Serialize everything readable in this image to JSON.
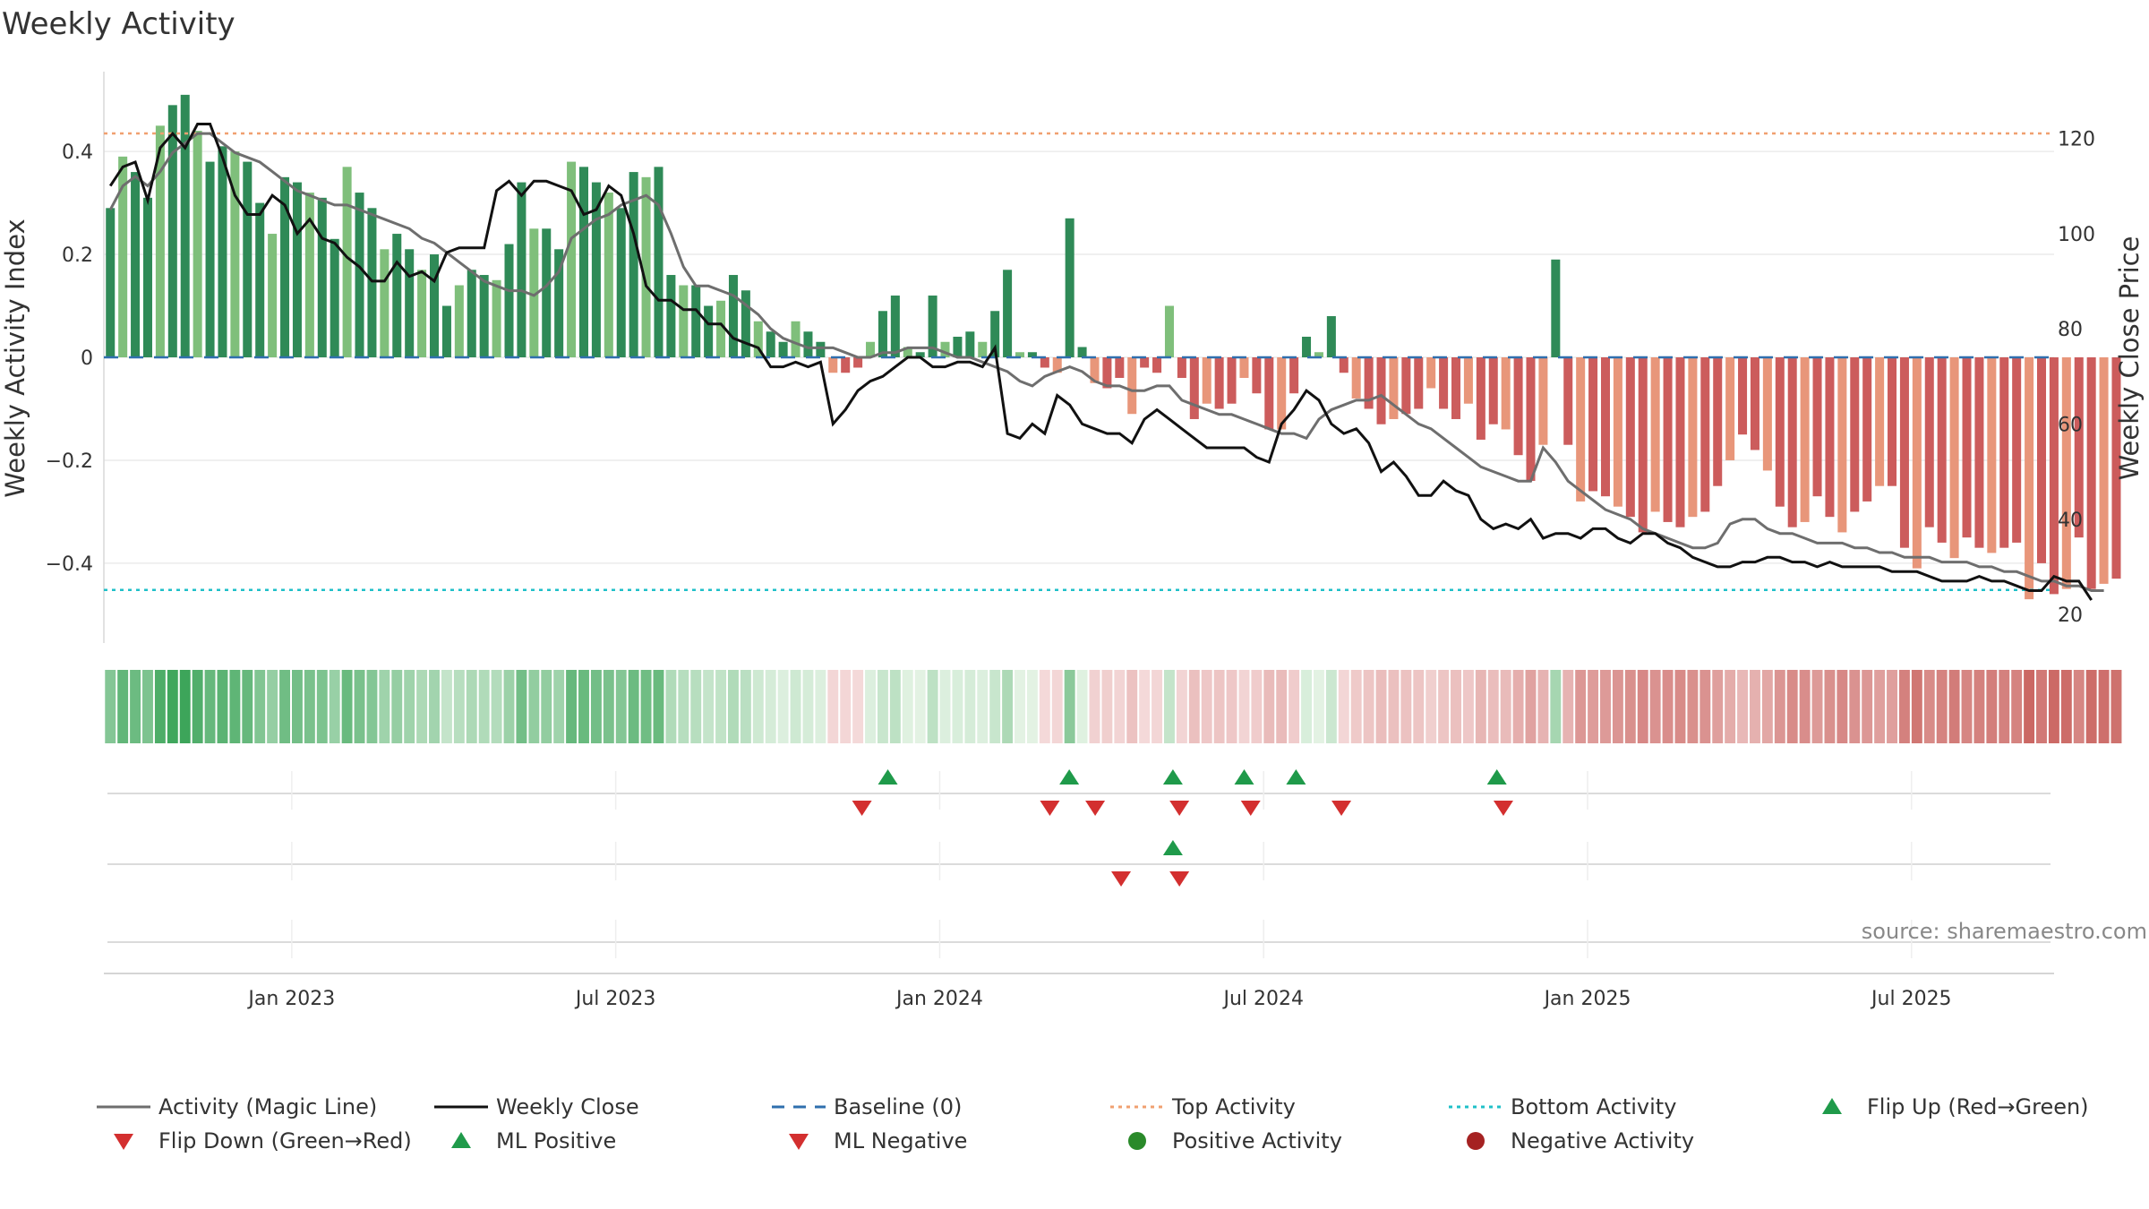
{
  "chart_data": {
    "type": "bar",
    "title": "Weekly Activity",
    "ylabel_left": "Weekly Activity Index",
    "ylabel_right": "Weekly Close Price",
    "ylim_left": [
      -0.555,
      0.555
    ],
    "ylim_right": [
      14,
      134
    ],
    "yticks_left": [
      {
        "v": 0.4,
        "label": "0.4"
      },
      {
        "v": 0.2,
        "label": "0.2"
      },
      {
        "v": 0,
        "label": "0"
      },
      {
        "v": -0.2,
        "label": "−0.2"
      },
      {
        "v": -0.4,
        "label": "−0.4"
      }
    ],
    "yticks_right": [
      {
        "v": 120,
        "label": "120"
      },
      {
        "v": 100,
        "label": "100"
      },
      {
        "v": 80,
        "label": "80"
      },
      {
        "v": 60,
        "label": "60"
      },
      {
        "v": 40,
        "label": "40"
      },
      {
        "v": 20,
        "label": "20"
      }
    ],
    "x_range": [
      2022.71,
      2025.72
    ],
    "xticks": [
      {
        "v": 2023.0,
        "label": "Jan 2023"
      },
      {
        "v": 2023.5,
        "label": "Jul 2023"
      },
      {
        "v": 2024.0,
        "label": "Jan 2024"
      },
      {
        "v": 2024.5,
        "label": "Jul 2024"
      },
      {
        "v": 2025.0,
        "label": "Jan 2025"
      },
      {
        "v": 2025.5,
        "label": "Jul 2025"
      }
    ],
    "top_activity": 0.435,
    "bottom_activity": -0.452,
    "baseline": 0,
    "source": "source: sharemaestro.com",
    "weeks": {
      "start": 2022.72,
      "step": 0.01923,
      "activity": [
        0.29,
        0.39,
        0.36,
        0.31,
        0.45,
        0.49,
        0.51,
        0.44,
        0.38,
        0.41,
        0.4,
        0.38,
        0.3,
        0.24,
        0.35,
        0.34,
        0.32,
        0.31,
        0.23,
        0.37,
        0.32,
        0.29,
        0.21,
        0.24,
        0.21,
        0.17,
        0.2,
        0.1,
        0.14,
        0.17,
        0.16,
        0.15,
        0.22,
        0.34,
        0.25,
        0.25,
        0.21,
        0.38,
        0.37,
        0.34,
        0.32,
        0.29,
        0.36,
        0.35,
        0.37,
        0.16,
        0.14,
        0.14,
        0.1,
        0.11,
        0.16,
        0.13,
        0.07,
        0.05,
        0.03,
        0.07,
        0.05,
        0.03,
        -0.03,
        -0.03,
        -0.02,
        0.03,
        0.09,
        0.12,
        0.02,
        0.01,
        0.12,
        0.03,
        0.04,
        0.05,
        0.03,
        0.09,
        0.17,
        0.01,
        0.01,
        -0.02,
        -0.03,
        0.27,
        0.02,
        -0.05,
        -0.06,
        -0.04,
        -0.11,
        -0.02,
        -0.03,
        0.1,
        -0.04,
        -0.12,
        -0.09,
        -0.1,
        -0.09,
        -0.04,
        -0.07,
        -0.14,
        -0.14,
        -0.07,
        0.04,
        0.01,
        0.08,
        -0.03,
        -0.08,
        -0.1,
        -0.13,
        -0.12,
        -0.11,
        -0.1,
        -0.06,
        -0.1,
        -0.12,
        -0.09,
        -0.16,
        -0.13,
        -0.14,
        -0.19,
        -0.24,
        -0.17,
        0.19,
        -0.17,
        -0.28,
        -0.26,
        -0.27,
        -0.29,
        -0.31,
        -0.34,
        -0.3,
        -0.32,
        -0.33,
        -0.31,
        -0.3,
        -0.25,
        -0.2,
        -0.15,
        -0.18,
        -0.22,
        -0.29,
        -0.33,
        -0.32,
        -0.27,
        -0.31,
        -0.34,
        -0.3,
        -0.28,
        -0.25,
        -0.25,
        -0.37,
        -0.41,
        -0.33,
        -0.36,
        -0.39,
        -0.35,
        -0.37,
        -0.38,
        -0.37,
        -0.36,
        -0.47,
        -0.4,
        -0.46,
        -0.45,
        -0.35,
        -0.45,
        -0.44,
        -0.43
      ],
      "close": [
        110,
        114,
        115,
        107,
        118,
        121,
        118,
        123,
        123,
        116,
        108,
        104,
        104,
        108,
        106,
        100,
        103,
        99,
        98,
        95,
        93,
        90,
        90,
        94,
        91,
        92,
        90,
        96,
        97,
        97,
        97,
        109,
        111,
        108,
        111,
        111,
        110,
        109,
        104,
        105,
        110,
        108,
        100,
        89,
        86,
        86,
        84,
        84,
        81,
        81,
        78,
        77,
        76,
        72,
        72,
        73,
        72,
        73,
        60,
        63,
        67,
        69,
        70,
        72,
        74,
        74,
        72,
        72,
        73,
        73,
        72,
        76,
        58,
        57,
        60,
        58,
        66,
        64,
        60,
        59,
        58,
        58,
        56,
        61,
        63,
        61,
        59,
        57,
        55,
        55,
        55,
        55,
        53,
        52,
        60,
        63,
        67,
        65,
        60,
        58,
        59,
        56,
        50,
        52,
        49,
        45,
        45,
        48,
        46,
        45,
        40,
        38,
        39,
        38,
        40,
        36,
        37,
        37,
        36,
        38,
        38,
        36,
        35,
        37,
        37,
        35,
        34,
        32,
        31,
        30,
        30,
        31,
        31,
        32,
        32,
        31,
        31,
        30,
        31,
        30,
        30,
        30,
        30,
        29,
        29,
        29,
        28,
        27,
        27,
        27,
        28,
        27,
        27,
        26,
        25,
        25,
        28,
        27,
        27,
        23
      ],
      "magic": [
        105,
        110,
        112,
        110,
        113,
        117,
        119,
        121,
        121,
        119,
        117,
        116,
        115,
        113,
        111,
        109,
        108,
        107,
        106,
        106,
        105,
        104,
        103,
        102,
        101,
        99,
        98,
        96,
        94,
        92,
        90,
        89,
        88,
        88,
        87,
        89,
        92,
        99,
        101,
        103,
        104,
        106,
        107,
        108,
        106,
        100,
        93,
        89,
        89,
        88,
        87,
        85,
        83,
        80,
        78,
        77,
        76,
        76,
        76,
        75,
        74,
        74,
        75,
        75,
        76,
        76,
        76,
        75,
        74,
        74,
        73,
        72,
        71,
        69,
        68,
        70,
        71,
        72,
        71,
        69,
        68,
        68,
        67,
        67,
        68,
        68,
        65,
        64,
        63,
        62,
        62,
        61,
        60,
        59,
        58,
        58,
        57,
        61,
        63,
        64,
        65,
        65,
        66,
        64,
        62,
        60,
        59,
        57,
        55,
        53,
        51,
        50,
        49,
        48,
        48,
        55,
        52,
        48,
        46,
        44,
        42,
        41,
        40,
        38,
        37,
        36,
        35,
        34,
        34,
        35,
        39,
        40,
        40,
        38,
        37,
        37,
        36,
        35,
        35,
        35,
        34,
        34,
        33,
        33,
        32,
        32,
        32,
        31,
        31,
        31,
        30,
        30,
        29,
        29,
        28,
        27,
        27,
        26,
        26,
        25,
        25
      ]
    },
    "flip_up": [
      2023.92,
      2024.2,
      2024.36,
      2024.47,
      2024.55,
      2024.86
    ],
    "flip_down": [
      2023.88,
      2024.17,
      2024.24,
      2024.37,
      2024.48,
      2024.62,
      2024.87
    ],
    "ml_positive": [
      2024.36
    ],
    "ml_negative": [
      2024.28,
      2024.37
    ],
    "legend": [
      {
        "label": "Activity (Magic Line)",
        "kind": "line",
        "color": "#6e6e6e"
      },
      {
        "label": "Weekly Close",
        "kind": "line",
        "color": "#111111"
      },
      {
        "label": "Baseline (0)",
        "kind": "dash",
        "color": "#2f6fae"
      },
      {
        "label": "Top Activity",
        "kind": "dot",
        "color": "#f0a070"
      },
      {
        "label": "Bottom Activity",
        "kind": "dot",
        "color": "#20c0c8"
      },
      {
        "label": "Flip Up (Red→Green)",
        "kind": "tri-up",
        "color": "#1f9a4a"
      },
      {
        "label": "Flip Down (Green→Red)",
        "kind": "tri-down",
        "color": "#d32f2f"
      },
      {
        "label": "ML Positive",
        "kind": "tri-up",
        "color": "#1f9a4a"
      },
      {
        "label": "ML Negative",
        "kind": "tri-down",
        "color": "#d32f2f"
      },
      {
        "label": "Positive Activity",
        "kind": "circle",
        "color": "#2a8a2a"
      },
      {
        "label": "Negative Activity",
        "kind": "circle",
        "color": "#a52222"
      }
    ]
  }
}
